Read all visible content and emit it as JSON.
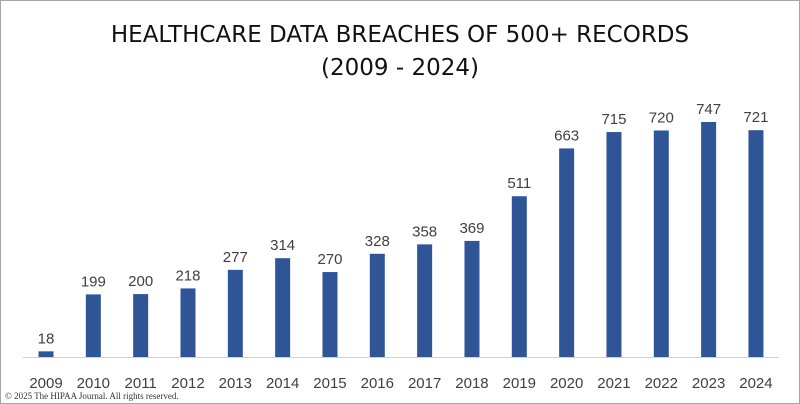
{
  "chart_data": {
    "type": "bar",
    "title_line1": "HEALTHCARE DATA BREACHES OF 500+ RECORDS",
    "title_line2": "(2009 - 2024)",
    "categories": [
      "2009",
      "2010",
      "2011",
      "2012",
      "2013",
      "2014",
      "2015",
      "2016",
      "2017",
      "2018",
      "2019",
      "2020",
      "2021",
      "2022",
      "2023",
      "2024"
    ],
    "values": [
      18,
      199,
      200,
      218,
      277,
      314,
      270,
      328,
      358,
      369,
      511,
      663,
      715,
      720,
      747,
      721
    ],
    "ylim": [
      0,
      800
    ],
    "grid": false,
    "bar_color": "#2f5597",
    "data_labels": true
  },
  "footer": {
    "copyright": "© 2025 The HIPAA Journal. All rights reserved."
  }
}
